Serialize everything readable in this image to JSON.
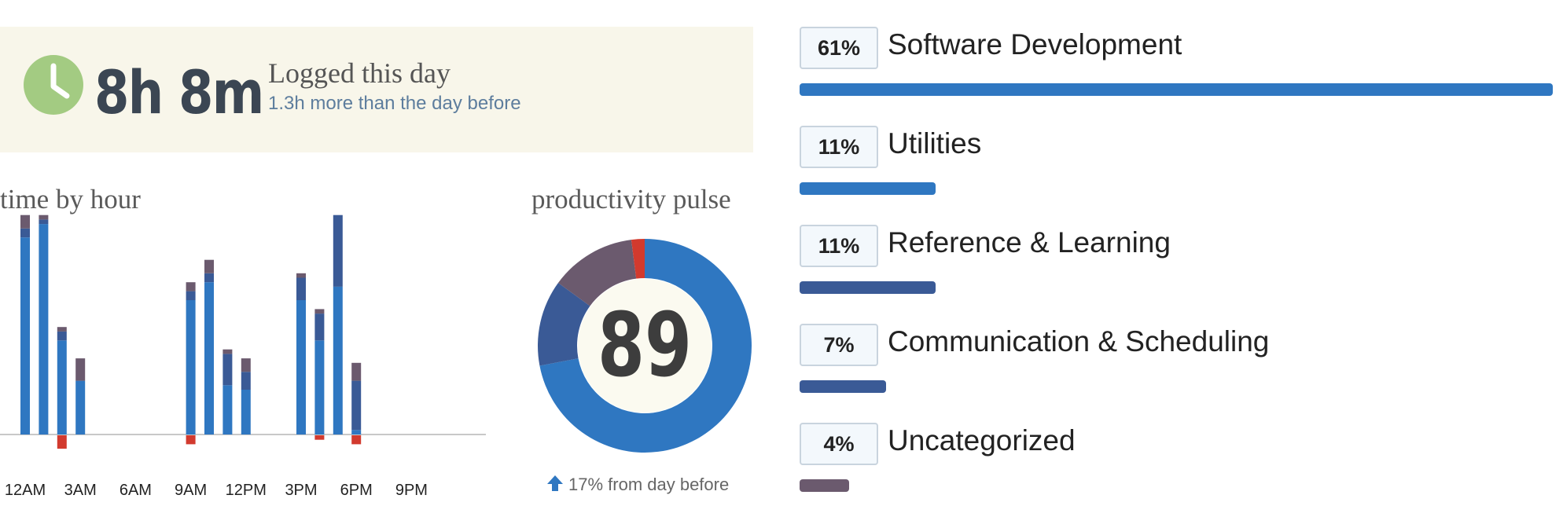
{
  "summary": {
    "logged_time": "8h 8m",
    "title": "Logged this day",
    "subtitle": "1.3h more than the day before"
  },
  "colors": {
    "very_productive": "#2f77c1",
    "productive": "#3a5a96",
    "neutral": "#6b5a6e",
    "very_distracting": "#d23a2e",
    "clock": "#a3cb82",
    "summary_bg": "#f8f6ea"
  },
  "chart_data": [
    {
      "type": "bar",
      "title": "time by hour",
      "x_tick_labels": [
        "12AM",
        "3AM",
        "6AM",
        "9AM",
        "12PM",
        "3PM",
        "6PM",
        "9PM"
      ],
      "hours": [
        0,
        1,
        2,
        3,
        9,
        10,
        11,
        12,
        15,
        16,
        17,
        18
      ],
      "series": [
        {
          "color_key": "very_productive",
          "values": [
            44,
            47,
            21,
            12,
            30,
            34,
            11,
            10,
            30,
            21,
            33,
            1
          ]
        },
        {
          "color_key": "productive",
          "values": [
            2,
            1,
            2,
            0,
            2,
            2,
            7,
            4,
            5,
            6,
            16,
            11
          ]
        },
        {
          "color_key": "neutral",
          "values": [
            3,
            1,
            1,
            5,
            2,
            3,
            1,
            3,
            1,
            1,
            0,
            4
          ]
        },
        {
          "color_key": "very_distracting",
          "values": [
            0,
            0,
            3,
            0,
            2,
            0,
            0,
            0,
            0,
            1,
            0,
            2
          ]
        }
      ],
      "legend": "none",
      "grid": false
    },
    {
      "type": "pie",
      "title": "productivity pulse",
      "center_value": "89",
      "change": "17% from day before",
      "slices": [
        {
          "color_key": "very_productive",
          "value": 72
        },
        {
          "color_key": "productive",
          "value": 13
        },
        {
          "color_key": "neutral",
          "value": 13
        },
        {
          "color_key": "very_distracting",
          "value": 2
        }
      ]
    },
    {
      "type": "bar",
      "orientation": "horizontal",
      "categories": [
        {
          "label": "Software Development",
          "percent": "61%",
          "value": 61,
          "color_key": "very_productive"
        },
        {
          "label": "Utilities",
          "percent": "11%",
          "value": 11,
          "color_key": "very_productive"
        },
        {
          "label": "Reference & Learning",
          "percent": "11%",
          "value": 11,
          "color_key": "productive"
        },
        {
          "label": "Communication & Scheduling",
          "percent": "7%",
          "value": 7,
          "color_key": "productive"
        },
        {
          "label": "Uncategorized",
          "percent": "4%",
          "value": 4,
          "color_key": "neutral"
        }
      ]
    }
  ]
}
